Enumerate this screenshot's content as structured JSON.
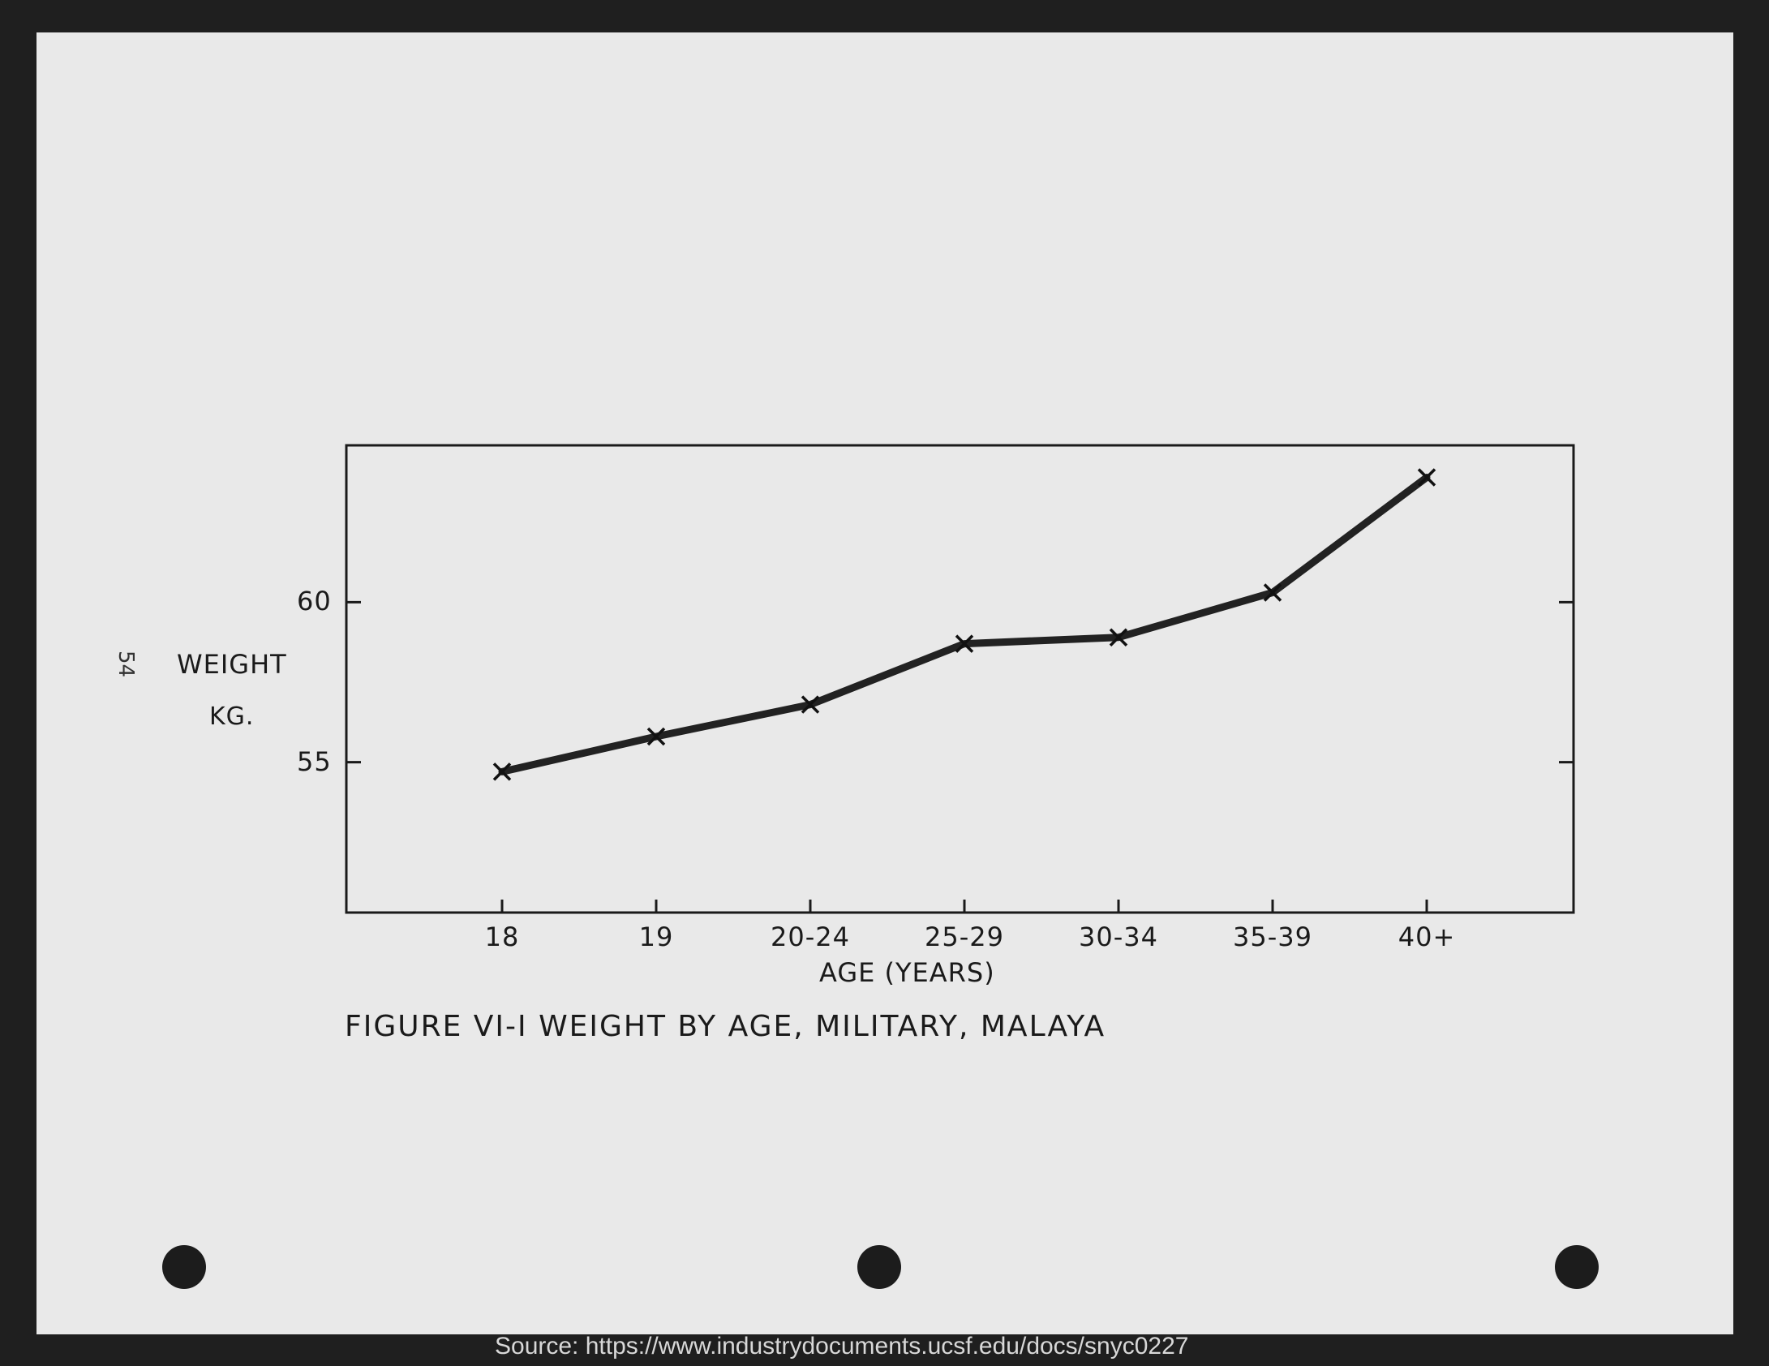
{
  "page_number": "54",
  "caption": "FIGURE VI-I WEIGHT BY AGE, MILITARY, MALAYA",
  "source": "Source: https://www.industrydocuments.ucsf.edu/docs/snyc0227",
  "chart_data": {
    "type": "line",
    "title": "",
    "ylabel_line1": "WEIGHT",
    "ylabel_line2": "KG.",
    "xlabel": "AGE (YEARS)",
    "categories": [
      "18",
      "19",
      "20-24",
      "25-29",
      "30-34",
      "35-39",
      "40+"
    ],
    "values": [
      54.7,
      55.8,
      56.8,
      58.7,
      58.9,
      60.3,
      63.9
    ],
    "yticks": [
      55,
      60
    ],
    "ytick_labels": [
      "55",
      "60"
    ],
    "ylim": [
      50.3,
      64.9
    ],
    "marker": "x",
    "grid": false,
    "line_color": "#222222"
  }
}
